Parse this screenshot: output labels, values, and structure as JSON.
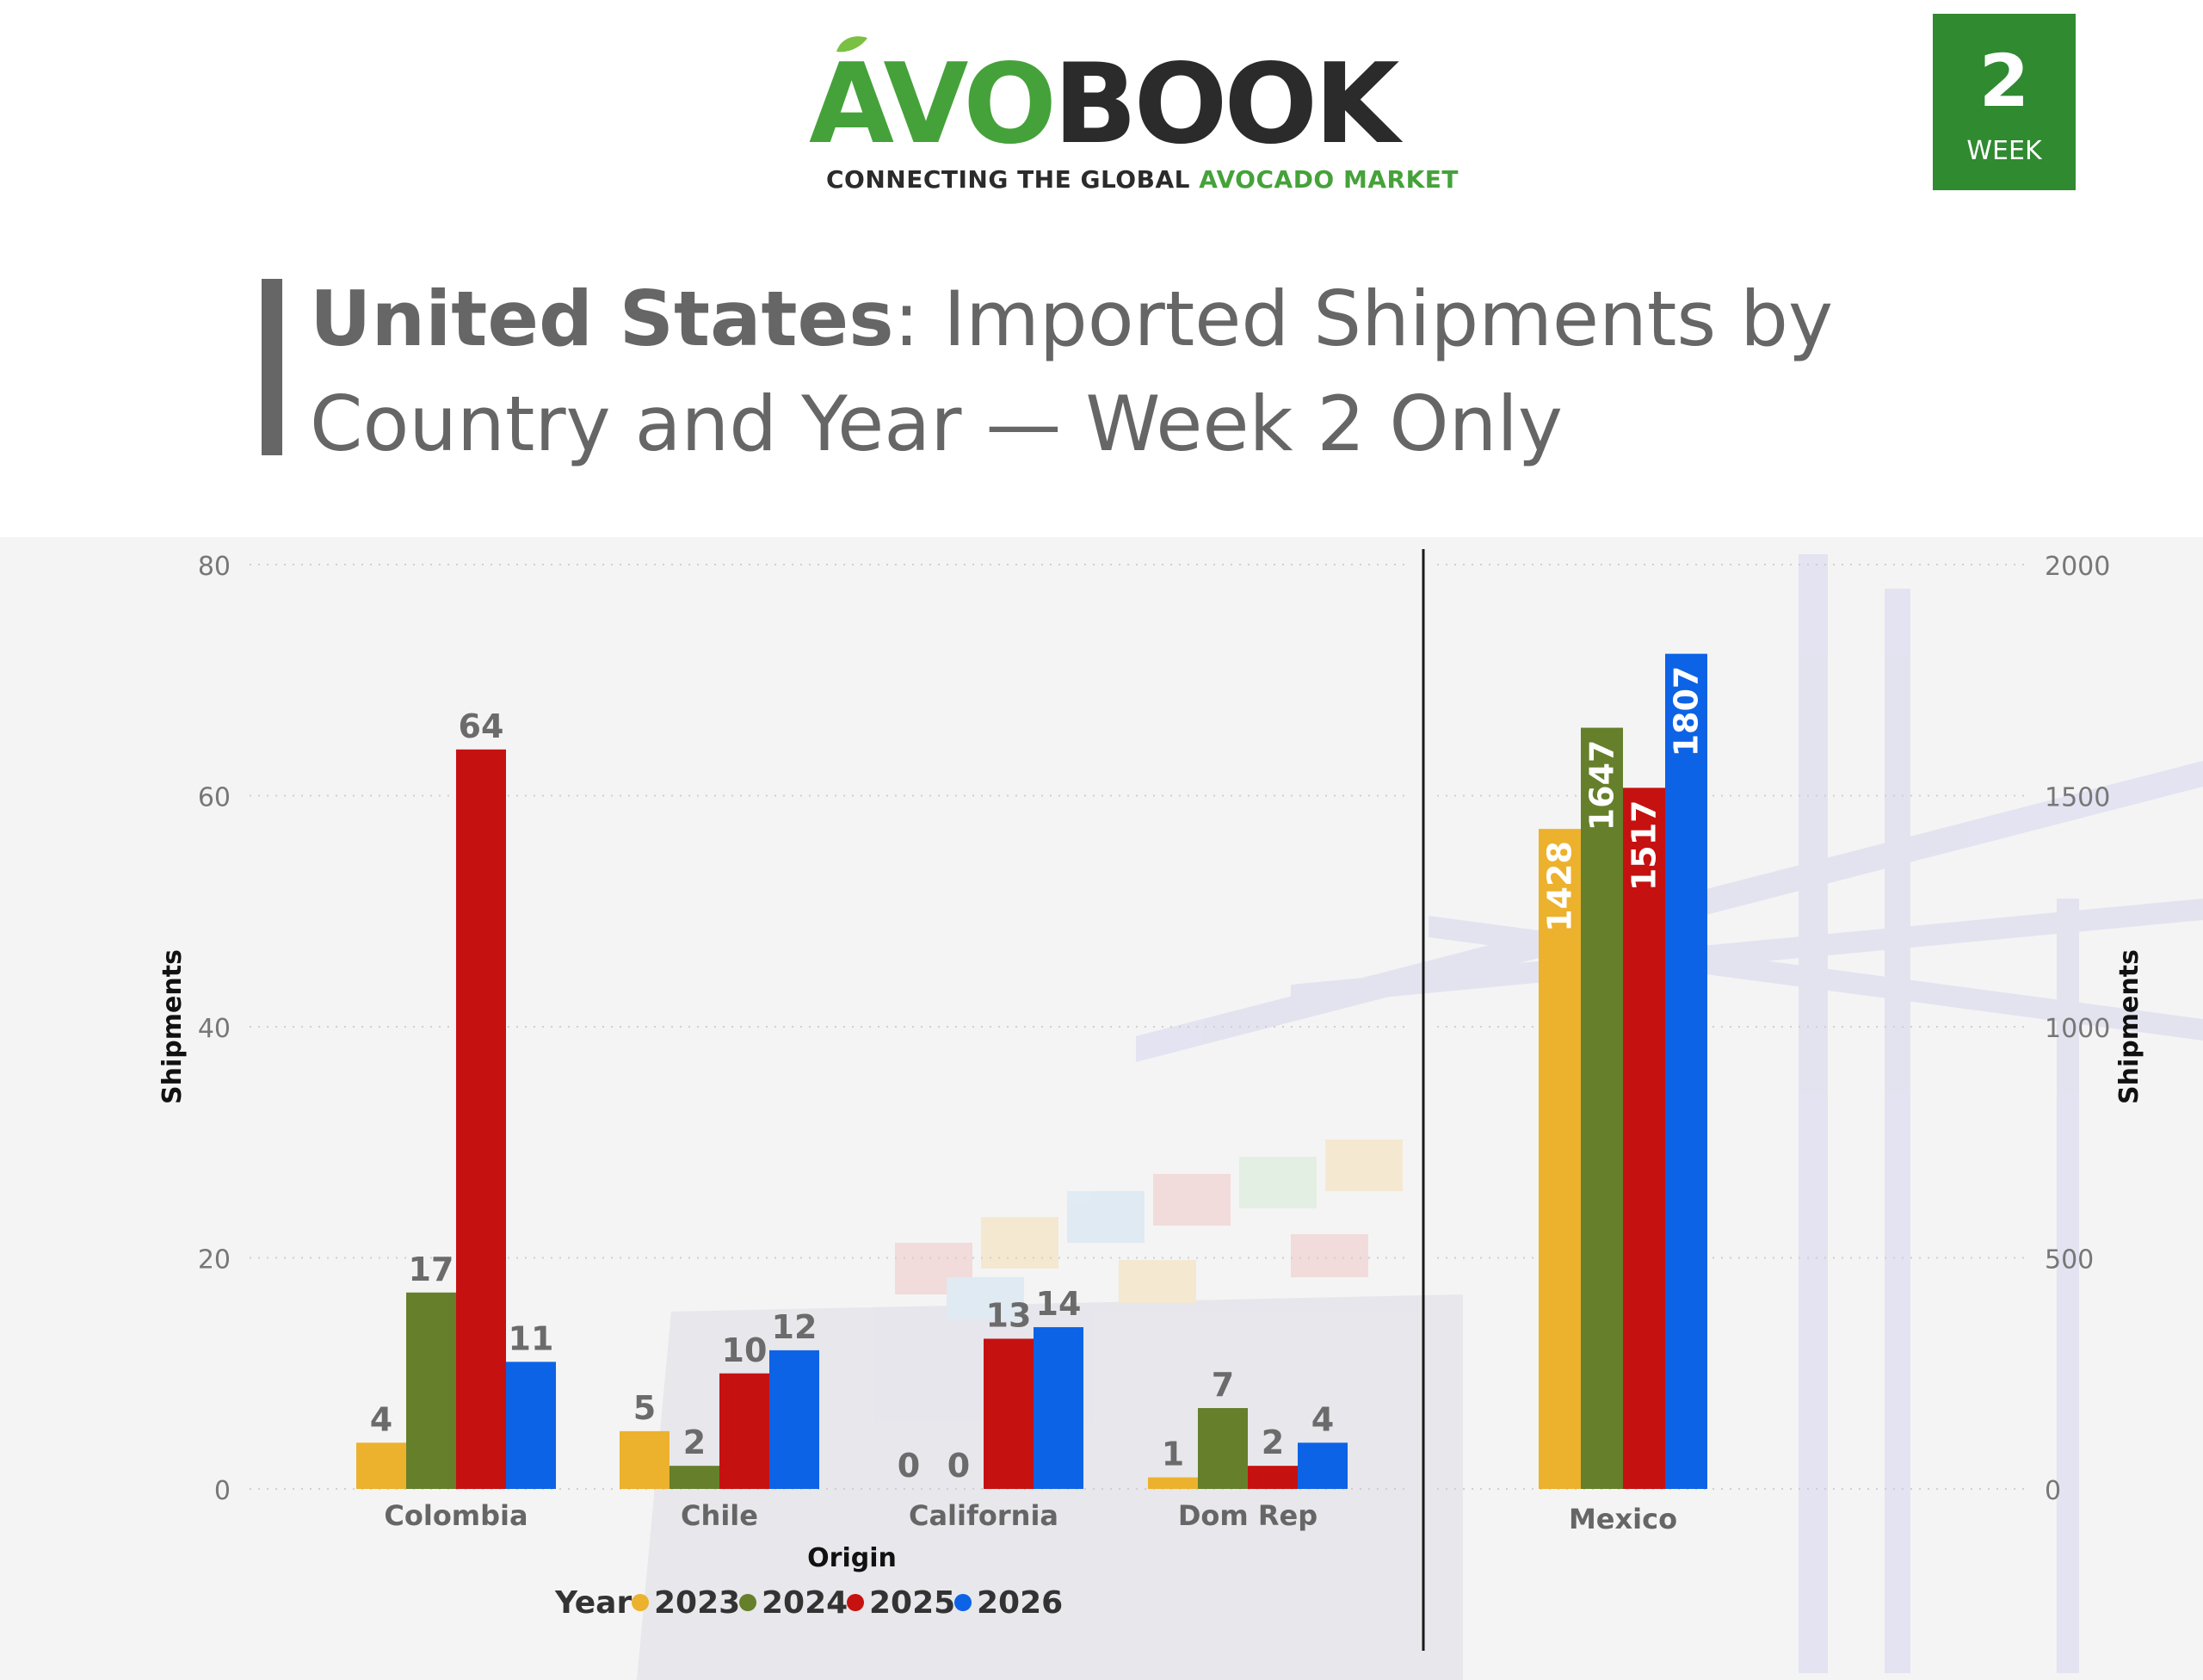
{
  "header": {
    "logo": {
      "brand_avo": "AVO",
      "brand_book": "BOOK",
      "tagline_part1": "CONNECTING THE GLOBAL ",
      "tagline_part2": "AVOCADO MARKET"
    },
    "week_badge": {
      "number": "2",
      "label": "WEEK"
    },
    "title_bold": "United States",
    "title_rest": ": Imported Shipments by Country and Year — Week 2 Only"
  },
  "colors": {
    "2023": "#ecb12d",
    "2024": "#657f2b",
    "2025": "#c61111",
    "2026": "#0d63e6",
    "brand_green": "#2f8a30",
    "text_gray": "#666666"
  },
  "chart_data": [
    {
      "type": "bar",
      "categories": [
        "Colombia",
        "Chile",
        "California",
        "Dom Rep"
      ],
      "series": [
        {
          "name": "2023",
          "values": [
            4,
            5,
            0,
            1
          ]
        },
        {
          "name": "2024",
          "values": [
            17,
            2,
            0,
            7
          ]
        },
        {
          "name": "2025",
          "values": [
            64,
            10,
            13,
            2
          ]
        },
        {
          "name": "2026",
          "values": [
            11,
            12,
            14,
            4
          ]
        }
      ],
      "ylim": [
        0,
        80
      ],
      "yticks": [
        0,
        20,
        40,
        60,
        80
      ],
      "xlabel": "Origin",
      "ylabel": "Shipments",
      "grid": true,
      "legend": {
        "title": "Year",
        "entries": [
          "2023",
          "2024",
          "2025",
          "2026"
        ],
        "position": "bottom"
      }
    },
    {
      "type": "bar",
      "categories": [
        "Mexico"
      ],
      "series": [
        {
          "name": "2023",
          "values": [
            1428
          ]
        },
        {
          "name": "2024",
          "values": [
            1647
          ]
        },
        {
          "name": "2025",
          "values": [
            1517
          ]
        },
        {
          "name": "2026",
          "values": [
            1807
          ]
        }
      ],
      "ylim": [
        0,
        2000
      ],
      "yticks": [
        0,
        500,
        1000,
        1500,
        2000
      ],
      "ylabel": "Shipments",
      "grid": true
    }
  ]
}
